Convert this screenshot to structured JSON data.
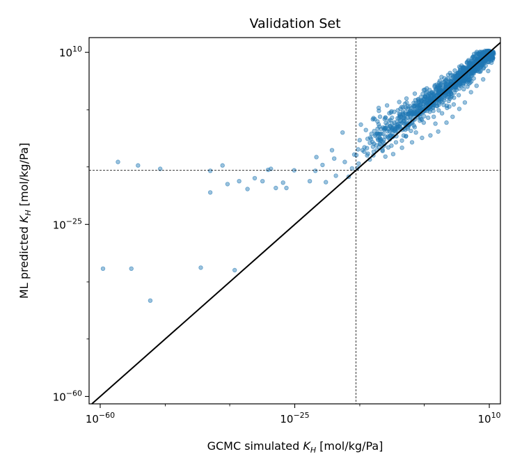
{
  "chart_data": {
    "type": "scatter",
    "title": "Validation Set",
    "xlabel_prefix": "GCMC simulated ",
    "ylabel_prefix": "ML predicted ",
    "label_symbol": "K",
    "label_subscript": "H",
    "label_unit": " [mol/kg/Pa]",
    "x_scale": "log",
    "y_scale": "log",
    "xlim_exp": [
      -62.0,
      12.0
    ],
    "ylim_exp": [
      -61.5,
      13.0
    ],
    "x_ticks": [
      {
        "base": "10",
        "exp": "−60",
        "value_exp": -60
      },
      {
        "base": "10",
        "exp": "−25",
        "value_exp": -25
      },
      {
        "base": "10",
        "exp": "10",
        "value_exp": 10
      }
    ],
    "y_ticks": [
      {
        "base": "10",
        "exp": "−60",
        "value_exp": -60
      },
      {
        "base": "10",
        "exp": "−25",
        "value_exp": -25
      },
      {
        "base": "10",
        "exp": "10",
        "value_exp": 10
      }
    ],
    "x_minor_exp": [
      -48.3,
      -36.7,
      -13.3,
      -1.7
    ],
    "y_minor_exp": [
      -48.3,
      -36.7,
      -13.3,
      -1.7
    ],
    "reference_lines": {
      "x_exp": -14,
      "y_exp": -14
    },
    "parity_line": true,
    "grid": false,
    "series": [
      {
        "color": "#1f77b4",
        "alpha": 0.45,
        "points_log10": [
          [
            -59.5,
            -34.0
          ],
          [
            -54.4,
            -34.0
          ],
          [
            -51.0,
            -40.5
          ],
          [
            -56.8,
            -12.3
          ],
          [
            -53.2,
            -13.0
          ],
          [
            -49.2,
            -13.7
          ],
          [
            -41.9,
            -33.8
          ],
          [
            -35.8,
            -34.3
          ],
          [
            -40.2,
            -14.1
          ],
          [
            -40.2,
            -18.5
          ],
          [
            -38.0,
            -13.0
          ],
          [
            -37.1,
            -16.8
          ],
          [
            -35.0,
            -16.2
          ],
          [
            -33.5,
            -17.8
          ],
          [
            -32.2,
            -15.6
          ],
          [
            -30.8,
            -16.2
          ],
          [
            -29.8,
            -13.9
          ],
          [
            -29.3,
            -13.7
          ],
          [
            -28.4,
            -17.6
          ],
          [
            -27.1,
            -16.5
          ],
          [
            -26.5,
            -17.6
          ],
          [
            -25.1,
            -14.0
          ],
          [
            -22.3,
            -16.2
          ],
          [
            -21.1,
            -11.3
          ],
          [
            -20.0,
            -12.9
          ],
          [
            -18.3,
            -9.9
          ],
          [
            -17.9,
            -11.6
          ],
          [
            -16.0,
            -12.3
          ],
          [
            -15.3,
            -15.3
          ],
          [
            -14.3,
            -10.8
          ],
          [
            -19.4,
            -16.4
          ],
          [
            -17.6,
            -15.1
          ],
          [
            -16.4,
            -6.3
          ],
          [
            -21.3,
            -14.1
          ],
          [
            -14.7,
            -13.6
          ],
          [
            -13.1,
            -4.7
          ],
          [
            -12.8,
            -9.9
          ],
          [
            -11.9,
            -7.6
          ],
          [
            -11.5,
            -11.8
          ],
          [
            -10.8,
            -10.2
          ],
          [
            -10.2,
            -6.5
          ],
          [
            -9.5,
            -5.6
          ],
          [
            -9.0,
            -9.1
          ],
          [
            -8.7,
            -11.2
          ],
          [
            -8.2,
            -5.6
          ],
          [
            -7.9,
            -7.7
          ],
          [
            -7.5,
            -3.3
          ],
          [
            -7.3,
            -10.7
          ],
          [
            -6.8,
            -8.3
          ],
          [
            -6.5,
            -3.4
          ],
          [
            -6.0,
            -5.4
          ],
          [
            -5.7,
            -9.4
          ],
          [
            -5.3,
            -2.9
          ],
          [
            -5.0,
            -7.1
          ],
          [
            -4.7,
            -5.5
          ],
          [
            -4.2,
            -4.5
          ],
          [
            -3.9,
            -8.3
          ],
          [
            -3.6,
            -0.9
          ],
          [
            -3.2,
            -6.3
          ],
          [
            -2.8,
            -2.7
          ],
          [
            -2.5,
            -3.9
          ],
          [
            -2.1,
            -7.4
          ],
          [
            -1.8,
            -4.3
          ],
          [
            -1.4,
            -1.6
          ],
          [
            -1.0,
            -3.3
          ],
          [
            -0.6,
            -6.9
          ],
          [
            -0.3,
            -0.1
          ],
          [
            0.0,
            -3.1
          ],
          [
            0.3,
            -4.5
          ],
          [
            0.6,
            0.4
          ],
          [
            0.9,
            -1.8
          ],
          [
            1.2,
            1.5
          ],
          [
            1.5,
            -2.4
          ],
          [
            1.8,
            -0.7
          ],
          [
            2.1,
            2.6
          ],
          [
            2.4,
            -1.3
          ],
          [
            2.7,
            0.1
          ],
          [
            3.0,
            3.5
          ],
          [
            3.3,
            1.2
          ],
          [
            3.6,
            -0.6
          ],
          [
            3.9,
            2.9
          ],
          [
            4.2,
            4.5
          ],
          [
            4.5,
            1.3
          ],
          [
            4.8,
            3.6
          ],
          [
            5.1,
            5.8
          ],
          [
            5.4,
            2.5
          ],
          [
            5.7,
            4.6
          ],
          [
            6.0,
            6.7
          ],
          [
            6.3,
            3.6
          ],
          [
            6.6,
            5.7
          ],
          [
            6.9,
            7.5
          ],
          [
            7.2,
            4.7
          ],
          [
            7.5,
            6.3
          ],
          [
            7.8,
            8.6
          ],
          [
            8.1,
            6.1
          ],
          [
            8.4,
            7.6
          ],
          [
            8.7,
            9.0
          ],
          [
            9.0,
            6.9
          ],
          [
            9.3,
            8.2
          ],
          [
            9.6,
            9.5
          ],
          [
            9.9,
            8.0
          ],
          [
            10.3,
            9.3
          ],
          [
            10.6,
            8.5
          ],
          [
            -12.2,
            -5.8
          ],
          [
            -10.6,
            -3.6
          ],
          [
            -9.9,
            -1.3
          ],
          [
            -8.4,
            -0.8
          ],
          [
            -6.2,
            -0.1
          ],
          [
            -4.9,
            0.6
          ],
          [
            -3.4,
            1.6
          ],
          [
            -1.6,
            2.4
          ],
          [
            0.2,
            3.3
          ],
          [
            1.1,
            4.2
          ],
          [
            2.6,
            5.4
          ],
          [
            3.8,
            6.3
          ],
          [
            5.0,
            7.3
          ],
          [
            6.2,
            8.2
          ],
          [
            7.1,
            9.1
          ],
          [
            8.2,
            9.6
          ],
          [
            0.8,
            -6.1
          ],
          [
            2.3,
            -4.3
          ],
          [
            3.4,
            -3.1
          ],
          [
            4.6,
            -1.5
          ],
          [
            5.6,
            -0.2
          ],
          [
            6.7,
            1.9
          ],
          [
            7.7,
            3.2
          ],
          [
            8.9,
            4.5
          ],
          [
            9.8,
            6.2
          ],
          [
            -9.6,
            -8.7
          ],
          [
            -7.6,
            -2.0
          ],
          [
            -5.5,
            -1.2
          ],
          [
            -2.3,
            0.9
          ],
          [
            -0.9,
            1.1
          ],
          [
            1.9,
            3.9
          ],
          [
            4.0,
            5.1
          ],
          [
            5.3,
            6.8
          ],
          [
            6.5,
            7.8
          ],
          [
            7.4,
            8.8
          ],
          [
            8.6,
            8.1
          ]
        ],
        "band": {
          "x_exp_range": [
            -14.0,
            10.8
          ],
          "count": 900,
          "seed": 7
        }
      }
    ]
  }
}
